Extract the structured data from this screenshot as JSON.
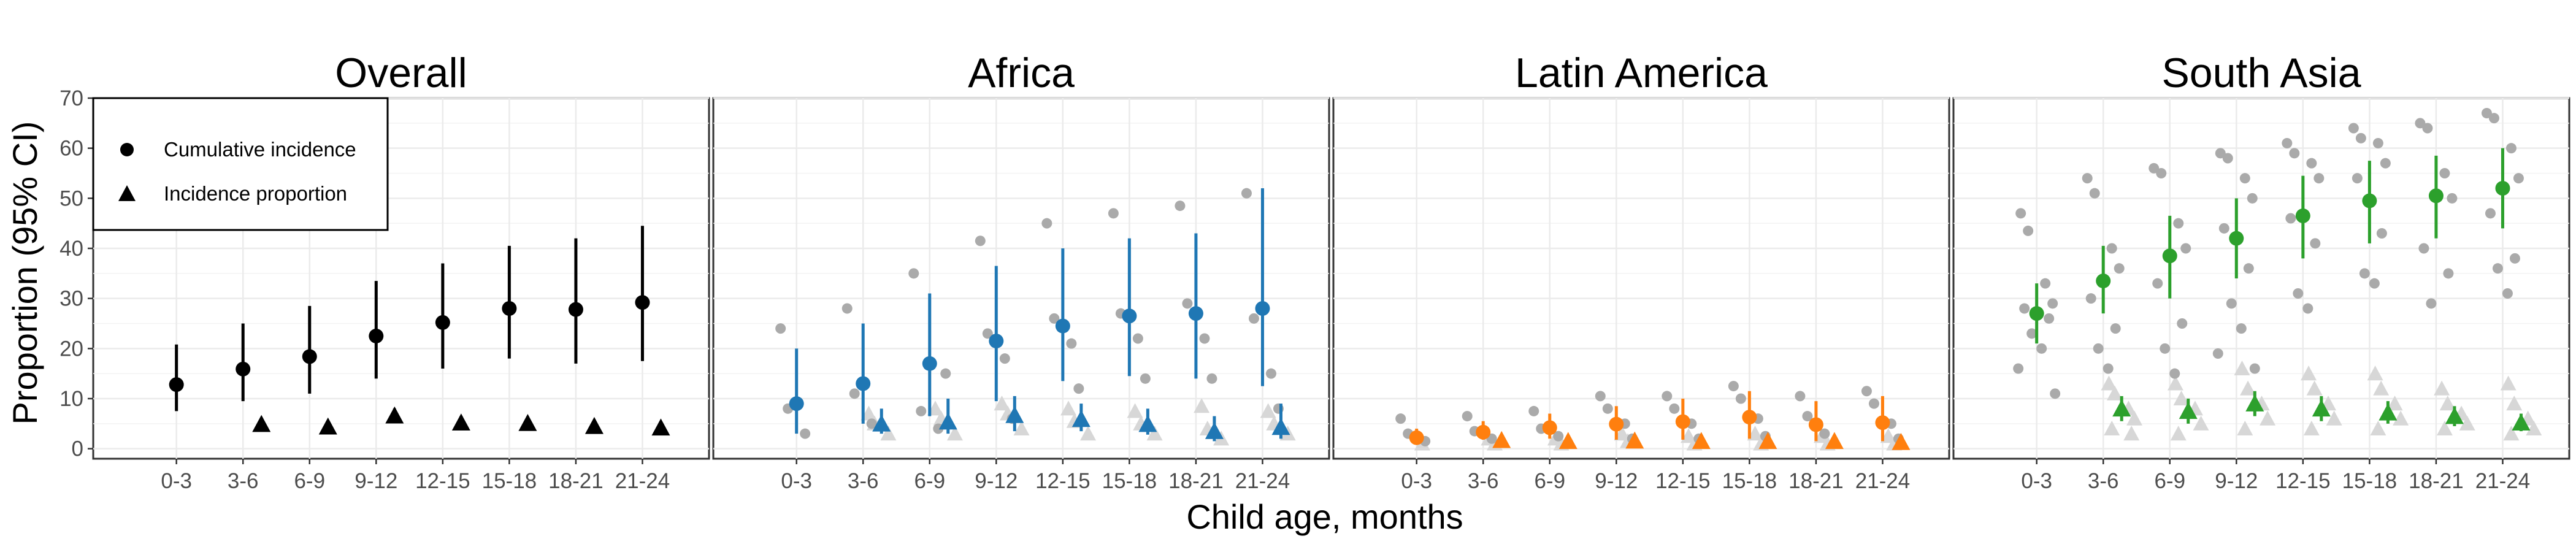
{
  "figure": {
    "ylabel": "Proportion (95% CI)",
    "xlabel": "Child age, months"
  },
  "legend": {
    "placement": "top-left inside first panel",
    "entries": [
      {
        "label": "Cumulative incidence",
        "marker": "circle"
      },
      {
        "label": "Incidence proportion",
        "marker": "triangle"
      }
    ]
  },
  "colors": {
    "Overall": "#000000",
    "Africa": "#1f77b4",
    "Latin America": "#ff7f0e",
    "South Asia": "#2ca02c",
    "study_points": "#aaaaaa",
    "study_points_incidence": "#d7d7d7",
    "grid": "#ebebeb"
  },
  "chart_data": [
    {
      "type": "scatter",
      "title": "Overall",
      "categories": [
        "0-3",
        "3-6",
        "6-9",
        "9-12",
        "12-15",
        "15-18",
        "18-21",
        "21-24"
      ],
      "ylim": [
        -2,
        70
      ],
      "yticks": [
        0,
        10,
        20,
        30,
        40,
        50,
        60,
        70
      ],
      "grid": true,
      "series": [
        {
          "name": "Cumulative incidence",
          "values": [
            12.8,
            15.9,
            18.4,
            22.5,
            25.2,
            28.0,
            27.8,
            29.2
          ],
          "lower": [
            7.5,
            9.5,
            11.0,
            14.0,
            16.0,
            18.0,
            17.0,
            17.5
          ],
          "upper": [
            20.8,
            25.0,
            28.5,
            33.5,
            37.0,
            40.5,
            42.0,
            44.5
          ]
        },
        {
          "name": "Incidence proportion",
          "values": [
            null,
            4.9,
            4.4,
            6.6,
            5.2,
            5.1,
            4.5,
            4.2
          ],
          "lower": [
            null,
            3.8,
            3.3,
            5.2,
            4.0,
            3.9,
            3.4,
            3.2
          ],
          "upper": [
            null,
            6.2,
            5.6,
            8.0,
            6.5,
            6.4,
            5.8,
            5.3
          ]
        }
      ],
      "study_points": []
    },
    {
      "type": "scatter",
      "title": "Africa",
      "categories": [
        "0-3",
        "3-6",
        "6-9",
        "9-12",
        "12-15",
        "15-18",
        "18-21",
        "21-24"
      ],
      "ylim": [
        -2,
        70
      ],
      "grid": true,
      "series": [
        {
          "name": "Cumulative incidence",
          "values": [
            9.0,
            13.0,
            17.0,
            21.5,
            24.5,
            26.5,
            27.0,
            28.0
          ],
          "lower": [
            3.0,
            5.0,
            6.5,
            9.5,
            13.5,
            14.5,
            14.0,
            12.5
          ],
          "upper": [
            20.0,
            25.0,
            31.0,
            36.5,
            40.0,
            42.0,
            43.0,
            52.0
          ]
        },
        {
          "name": "Incidence proportion",
          "values": [
            null,
            5.0,
            5.4,
            6.7,
            5.9,
            4.9,
            3.5,
            4.3
          ],
          "lower": [
            null,
            3.0,
            3.0,
            3.5,
            3.5,
            2.8,
            1.5,
            2.0
          ],
          "upper": [
            null,
            8.0,
            10.0,
            10.5,
            9.0,
            8.0,
            6.5,
            9.0
          ]
        }
      ],
      "study_points": [
        {
          "cat": 0,
          "ci": [
            24.0,
            8.0,
            3.0
          ],
          "ip": []
        },
        {
          "cat": 1,
          "ci": [
            28.0,
            11.0,
            5.0
          ],
          "ip": [
            7.0,
            5.0,
            3.0
          ]
        },
        {
          "cat": 2,
          "ci": [
            35.0,
            7.5,
            4.0,
            15.0
          ],
          "ip": [
            8.0,
            6.0,
            3.0
          ]
        },
        {
          "cat": 3,
          "ci": [
            41.5,
            23.0,
            18.0,
            6.0
          ],
          "ip": [
            9.0,
            7.0,
            4.0
          ]
        },
        {
          "cat": 4,
          "ci": [
            45.0,
            26.0,
            21.0,
            12.0
          ],
          "ip": [
            8.0,
            5.5,
            3.0
          ]
        },
        {
          "cat": 5,
          "ci": [
            47.0,
            27.0,
            22.0,
            14.0
          ],
          "ip": [
            7.5,
            5.0,
            3.0
          ]
        },
        {
          "cat": 6,
          "ci": [
            48.5,
            29.0,
            22.0,
            14.0
          ],
          "ip": [
            8.5,
            4.0,
            2.0
          ]
        },
        {
          "cat": 7,
          "ci": [
            51.0,
            26.0,
            15.0,
            8.0
          ],
          "ip": [
            7.5,
            5.0,
            3.0
          ]
        }
      ]
    },
    {
      "type": "scatter",
      "title": "Latin America",
      "categories": [
        "0-3",
        "3-6",
        "6-9",
        "9-12",
        "12-15",
        "15-18",
        "18-21",
        "21-24"
      ],
      "ylim": [
        -2,
        70
      ],
      "grid": true,
      "series": [
        {
          "name": "Cumulative incidence",
          "values": [
            2.2,
            3.3,
            4.2,
            4.9,
            5.4,
            6.3,
            4.8,
            5.2
          ],
          "lower": [
            1.0,
            1.8,
            2.0,
            1.8,
            1.8,
            2.0,
            1.5,
            1.5
          ],
          "upper": [
            4.0,
            5.5,
            7.0,
            8.5,
            10.0,
            11.5,
            9.5,
            10.5
          ]
        },
        {
          "name": "Incidence proportion",
          "values": [
            null,
            1.7,
            1.5,
            1.6,
            1.5,
            1.5,
            1.5,
            1.3
          ],
          "lower": [
            null,
            0.8,
            0.7,
            0.7,
            0.6,
            0.6,
            0.6,
            0.5
          ],
          "upper": [
            null,
            2.8,
            2.6,
            2.8,
            2.7,
            2.7,
            2.7,
            2.5
          ]
        }
      ],
      "study_points": [
        {
          "cat": 0,
          "ci": [
            6.0,
            3.0,
            1.5
          ],
          "ip": [
            1.0
          ]
        },
        {
          "cat": 1,
          "ci": [
            6.5,
            3.5,
            2.0
          ],
          "ip": [
            2.0,
            1.0
          ]
        },
        {
          "cat": 2,
          "ci": [
            7.5,
            4.0,
            2.5
          ],
          "ip": [
            2.0,
            1.0
          ]
        },
        {
          "cat": 3,
          "ci": [
            10.5,
            8.0,
            5.0,
            2.0
          ],
          "ip": [
            3.0,
            1.5
          ]
        },
        {
          "cat": 4,
          "ci": [
            10.5,
            8.0,
            5.0,
            2.0
          ],
          "ip": [
            2.5,
            1.0
          ]
        },
        {
          "cat": 5,
          "ci": [
            12.5,
            10.0,
            6.0,
            2.5
          ],
          "ip": [
            3.0,
            1.0
          ]
        },
        {
          "cat": 6,
          "ci": [
            10.5,
            6.5,
            3.0
          ],
          "ip": [
            2.5,
            1.0
          ]
        },
        {
          "cat": 7,
          "ci": [
            11.5,
            9.0,
            5.0,
            2.0
          ],
          "ip": [
            2.5,
            1.0
          ]
        }
      ]
    },
    {
      "type": "scatter",
      "title": "South Asia",
      "categories": [
        "0-3",
        "3-6",
        "6-9",
        "9-12",
        "12-15",
        "15-18",
        "18-21",
        "21-24"
      ],
      "ylim": [
        -2,
        70
      ],
      "grid": true,
      "series": [
        {
          "name": "Cumulative incidence",
          "values": [
            27.0,
            33.5,
            38.5,
            42.0,
            46.5,
            49.5,
            50.5,
            52.0
          ],
          "lower": [
            21.0,
            27.0,
            30.0,
            34.0,
            38.0,
            41.0,
            42.0,
            44.0
          ],
          "upper": [
            33.0,
            40.5,
            46.5,
            50.0,
            54.5,
            57.5,
            58.5,
            60.0
          ]
        },
        {
          "name": "Incidence proportion",
          "values": [
            null,
            8.0,
            7.5,
            9.0,
            8.0,
            7.2,
            6.5,
            5.2
          ],
          "lower": [
            null,
            5.5,
            5.0,
            6.5,
            5.5,
            5.0,
            4.5,
            3.5
          ],
          "upper": [
            null,
            10.5,
            10.0,
            11.5,
            10.5,
            9.5,
            8.5,
            7.0
          ]
        }
      ],
      "study_points": [
        {
          "cat": 0,
          "ci": [
            47.0,
            43.5,
            33.0,
            29.0,
            28.0,
            26.0,
            23.0,
            20.0,
            16.0,
            11.0
          ],
          "ip": []
        },
        {
          "cat": 1,
          "ci": [
            54.0,
            51.0,
            40.0,
            36.0,
            30.0,
            24.0,
            20.0,
            16.0
          ],
          "ip": [
            13.0,
            11.0,
            8.0,
            6.0,
            4.0,
            3.0
          ]
        },
        {
          "cat": 2,
          "ci": [
            56.0,
            55.0,
            45.0,
            40.0,
            33.0,
            25.0,
            20.0,
            15.0
          ],
          "ip": [
            13.0,
            10.0,
            8.0,
            5.0,
            3.0
          ]
        },
        {
          "cat": 3,
          "ci": [
            59.0,
            58.0,
            54.0,
            50.0,
            44.0,
            36.0,
            29.0,
            24.0,
            19.0,
            16.0
          ],
          "ip": [
            16.0,
            12.0,
            9.0,
            6.0,
            4.0
          ]
        },
        {
          "cat": 4,
          "ci": [
            61.0,
            59.0,
            57.0,
            54.0,
            46.0,
            41.0,
            31.0,
            28.0
          ],
          "ip": [
            15.0,
            12.0,
            9.0,
            6.0,
            4.0
          ]
        },
        {
          "cat": 5,
          "ci": [
            64.0,
            62.0,
            61.0,
            57.0,
            54.0,
            43.0,
            35.0,
            33.0
          ],
          "ip": [
            15.0,
            12.0,
            9.0,
            6.0,
            4.0
          ]
        },
        {
          "cat": 6,
          "ci": [
            65.0,
            64.0,
            55.0,
            50.0,
            40.0,
            35.0,
            29.0
          ],
          "ip": [
            12.0,
            9.0,
            7.0,
            5.0,
            4.0
          ]
        },
        {
          "cat": 7,
          "ci": [
            67.0,
            66.0,
            60.0,
            54.0,
            47.0,
            38.0,
            36.0,
            31.0
          ],
          "ip": [
            13.0,
            9.0,
            6.0,
            4.0,
            3.0
          ]
        }
      ]
    }
  ]
}
